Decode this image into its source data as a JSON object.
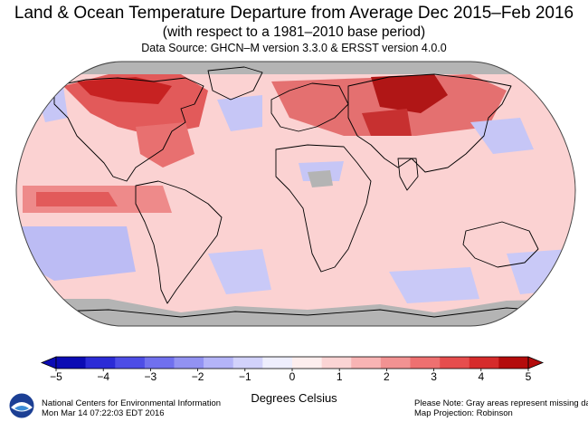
{
  "header": {
    "title": "Land & Ocean Temperature Departure from Average Dec 2015–Feb 2016",
    "subtitle": "(with respect to a 1981–2010 base period)",
    "source": "Data Source: GHCN–M version 3.3.0 & ERSST version 4.0.0"
  },
  "map": {
    "projection": "Robinson",
    "missing_color": "#b4b4b4",
    "coastline_color": "#000000",
    "ocean_base_color": "#fbd2d2"
  },
  "colorbar": {
    "ticks": [
      "−5",
      "−4",
      "−3",
      "−2",
      "−1",
      "0",
      "1",
      "2",
      "3",
      "4",
      "5"
    ],
    "unit_label": "Degrees Celsius",
    "colors": [
      "#0b0bb4",
      "#2b2bd6",
      "#4d4de6",
      "#7070ee",
      "#9292f2",
      "#b4b4f8",
      "#d2d2fb",
      "#eeeefd",
      "#fdeeee",
      "#fbd4d4",
      "#f8b4b4",
      "#f29292",
      "#ee7070",
      "#e64d4d",
      "#d62b2b",
      "#b40b0b"
    ]
  },
  "footer": {
    "org_line1": "National Centers for Environmental Information",
    "org_line2": "Mon Mar 14 07:22:03 EDT 2016",
    "note_line1": "Please Note: Gray areas represent missing data",
    "note_line2": "Map Projection: Robinson",
    "logo_text": "NOAA"
  }
}
